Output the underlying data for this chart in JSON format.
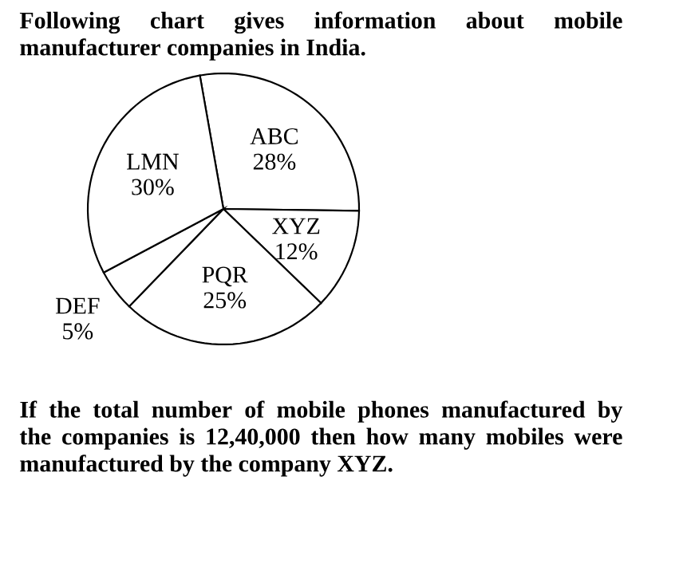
{
  "chart_data": {
    "type": "pie",
    "title": "Following chart gives information about mobile manufacturer companies in India.",
    "categories": [
      "ABC",
      "XYZ",
      "PQR",
      "DEF",
      "LMN"
    ],
    "values": [
      28,
      12,
      25,
      5,
      30
    ],
    "value_labels": [
      "28%",
      "12%",
      "25%",
      "5%",
      "30%"
    ],
    "colors": [
      "#ffffff",
      "#ffffff",
      "#ffffff",
      "#ffffff",
      "#ffffff"
    ],
    "annotations": [
      "If the total number of mobile phones manufactured by the companies is 12,40,000 then how many mobiles were manufactured by the company XYZ."
    ]
  }
}
